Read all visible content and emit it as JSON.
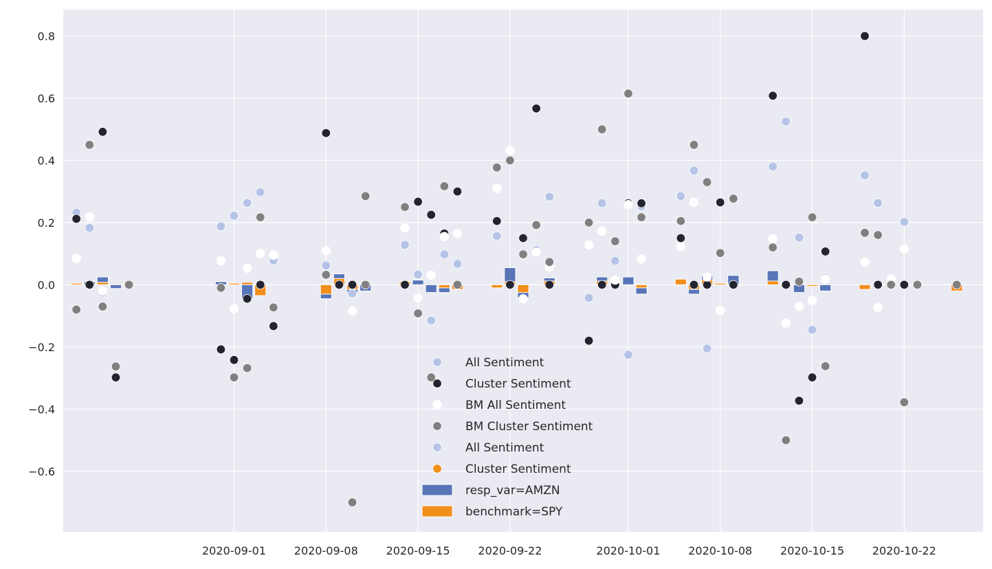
{
  "chart_data": {
    "type": "bar",
    "title": "",
    "xlabel": "",
    "ylabel": "",
    "ylim": [
      -0.795,
      0.885
    ],
    "xlim": [
      "2020-08-19",
      "2020-10-28"
    ],
    "grid": true,
    "background": "#eaeaf2",
    "yticks": [
      {
        "value": 0.8,
        "label": "0.8"
      },
      {
        "value": 0.6,
        "label": "0.6"
      },
      {
        "value": 0.4,
        "label": "0.4"
      },
      {
        "value": 0.2,
        "label": "0.2"
      },
      {
        "value": 0.0,
        "label": "0.0"
      },
      {
        "value": -0.2,
        "label": "−0.2"
      },
      {
        "value": -0.4,
        "label": "−0.4"
      },
      {
        "value": -0.6,
        "label": "−0.6"
      }
    ],
    "xticks": [
      "2020-09-01",
      "2020-09-08",
      "2020-09-15",
      "2020-09-22",
      "2020-10-01",
      "2020-10-08",
      "2020-10-15",
      "2020-10-22"
    ],
    "legend_position": "lower-center",
    "legend": [
      {
        "label": "All Sentiment",
        "kind": "dot",
        "color": "#b4c3e6"
      },
      {
        "label": "Cluster Sentiment",
        "kind": "dot",
        "color": "#23242f"
      },
      {
        "label": "BM All Sentiment",
        "kind": "dot",
        "color": "#ffffff"
      },
      {
        "label": "BM Cluster Sentiment",
        "kind": "dot",
        "color": "#808080"
      },
      {
        "label": "All Sentiment",
        "kind": "dot",
        "color": "#b4c3e6"
      },
      {
        "label": "Cluster Sentiment",
        "kind": "dot",
        "color": "#f28e1a"
      },
      {
        "label": "resp_var=AMZN",
        "kind": "bar",
        "color": "#5875b8"
      },
      {
        "label": "benchmark=SPY",
        "kind": "bar",
        "color": "#f28e1a"
      }
    ],
    "series": [
      {
        "name": "resp_var=AMZN",
        "kind": "bar",
        "color": "#5875b8",
        "points": [
          {
            "x": "2020-08-20",
            "y": 0.005
          },
          {
            "x": "2020-08-21",
            "y": 0.01
          },
          {
            "x": "2020-08-22",
            "y": 0.025
          },
          {
            "x": "2020-08-23",
            "y": -0.012
          },
          {
            "x": "2020-08-31",
            "y": 0.01
          },
          {
            "x": "2020-09-02",
            "y": -0.045
          },
          {
            "x": "2020-09-03",
            "y": -0.02
          },
          {
            "x": "2020-09-08",
            "y": -0.045
          },
          {
            "x": "2020-09-09",
            "y": 0.035
          },
          {
            "x": "2020-09-10",
            "y": -0.025
          },
          {
            "x": "2020-09-11",
            "y": -0.02
          },
          {
            "x": "2020-09-15",
            "y": 0.015
          },
          {
            "x": "2020-09-16",
            "y": -0.025
          },
          {
            "x": "2020-09-17",
            "y": -0.025
          },
          {
            "x": "2020-09-22",
            "y": 0.055
          },
          {
            "x": "2020-09-23",
            "y": -0.042
          },
          {
            "x": "2020-09-25",
            "y": 0.022
          },
          {
            "x": "2020-09-29",
            "y": 0.025
          },
          {
            "x": "2020-10-01",
            "y": 0.025
          },
          {
            "x": "2020-10-02",
            "y": -0.03
          },
          {
            "x": "2020-10-06",
            "y": -0.03
          },
          {
            "x": "2020-10-07",
            "y": 0.03
          },
          {
            "x": "2020-10-09",
            "y": 0.03
          },
          {
            "x": "2020-10-12",
            "y": 0.045
          },
          {
            "x": "2020-10-14",
            "y": -0.025
          },
          {
            "x": "2020-10-16",
            "y": -0.02
          }
        ]
      },
      {
        "name": "benchmark=SPY",
        "kind": "bar",
        "color": "#f28e1a",
        "points": [
          {
            "x": "2020-08-20",
            "y": 0.005
          },
          {
            "x": "2020-08-22",
            "y": 0.008
          },
          {
            "x": "2020-08-24",
            "y": 0.003
          },
          {
            "x": "2020-09-01",
            "y": 0.005
          },
          {
            "x": "2020-09-02",
            "y": 0.008
          },
          {
            "x": "2020-09-03",
            "y": -0.035
          },
          {
            "x": "2020-09-08",
            "y": -0.03
          },
          {
            "x": "2020-09-09",
            "y": 0.02
          },
          {
            "x": "2020-09-10",
            "y": -0.015
          },
          {
            "x": "2020-09-14",
            "y": 0.01
          },
          {
            "x": "2020-09-17",
            "y": -0.01
          },
          {
            "x": "2020-09-18",
            "y": -0.015
          },
          {
            "x": "2020-09-21",
            "y": -0.01
          },
          {
            "x": "2020-09-22",
            "y": 0.01
          },
          {
            "x": "2020-09-23",
            "y": -0.025
          },
          {
            "x": "2020-09-25",
            "y": 0.012
          },
          {
            "x": "2020-09-29",
            "y": 0.012
          },
          {
            "x": "2020-09-30",
            "y": 0.005
          },
          {
            "x": "2020-10-02",
            "y": -0.01
          },
          {
            "x": "2020-10-05",
            "y": 0.018
          },
          {
            "x": "2020-10-06",
            "y": -0.015
          },
          {
            "x": "2020-10-07",
            "y": 0.015
          },
          {
            "x": "2020-10-08",
            "y": 0.005
          },
          {
            "x": "2020-10-12",
            "y": 0.012
          },
          {
            "x": "2020-10-13",
            "y": -0.005
          },
          {
            "x": "2020-10-15",
            "y": -0.005
          },
          {
            "x": "2020-10-19",
            "y": -0.015
          },
          {
            "x": "2020-10-21",
            "y": 0.005
          },
          {
            "x": "2020-10-26",
            "y": -0.02
          }
        ]
      },
      {
        "name": "All Sentiment",
        "kind": "dot",
        "color": "#b4c3e6",
        "points": [
          {
            "x": "2020-08-20",
            "y": 0.232
          },
          {
            "x": "2020-08-21",
            "y": 0.183
          },
          {
            "x": "2020-08-22",
            "y": -0.025
          },
          {
            "x": "2020-08-31",
            "y": 0.188
          },
          {
            "x": "2020-09-01",
            "y": 0.222
          },
          {
            "x": "2020-09-02",
            "y": 0.263
          },
          {
            "x": "2020-09-03",
            "y": 0.298
          },
          {
            "x": "2020-09-04",
            "y": 0.078
          },
          {
            "x": "2020-09-08",
            "y": 0.062
          },
          {
            "x": "2020-09-10",
            "y": -0.028
          },
          {
            "x": "2020-09-14",
            "y": 0.128
          },
          {
            "x": "2020-09-15",
            "y": 0.033
          },
          {
            "x": "2020-09-16",
            "y": -0.115
          },
          {
            "x": "2020-09-17",
            "y": 0.098
          },
          {
            "x": "2020-09-18",
            "y": 0.067
          },
          {
            "x": "2020-09-21",
            "y": 0.157
          },
          {
            "x": "2020-09-24",
            "y": 0.112
          },
          {
            "x": "2020-09-25",
            "y": 0.283
          },
          {
            "x": "2020-09-28",
            "y": -0.042
          },
          {
            "x": "2020-09-29",
            "y": 0.262
          },
          {
            "x": "2020-09-30",
            "y": 0.077
          },
          {
            "x": "2020-10-01",
            "y": -0.225
          },
          {
            "x": "2020-10-02",
            "y": 0.252
          },
          {
            "x": "2020-10-05",
            "y": 0.285
          },
          {
            "x": "2020-10-06",
            "y": 0.367
          },
          {
            "x": "2020-10-07",
            "y": -0.205
          },
          {
            "x": "2020-10-12",
            "y": 0.38
          },
          {
            "x": "2020-10-13",
            "y": 0.525
          },
          {
            "x": "2020-10-14",
            "y": 0.152
          },
          {
            "x": "2020-10-15",
            "y": -0.145
          },
          {
            "x": "2020-10-16",
            "y": 0.022
          },
          {
            "x": "2020-10-19",
            "y": 0.352
          },
          {
            "x": "2020-10-20",
            "y": 0.263
          },
          {
            "x": "2020-10-22",
            "y": 0.202
          }
        ]
      },
      {
        "name": "Cluster Sentiment",
        "kind": "dot",
        "color": "#23242f",
        "points": [
          {
            "x": "2020-08-20",
            "y": 0.212
          },
          {
            "x": "2020-08-21",
            "y": 0.0
          },
          {
            "x": "2020-08-22",
            "y": 0.492
          },
          {
            "x": "2020-08-23",
            "y": -0.298
          },
          {
            "x": "2020-08-31",
            "y": -0.208
          },
          {
            "x": "2020-09-01",
            "y": -0.242
          },
          {
            "x": "2020-09-02",
            "y": -0.045
          },
          {
            "x": "2020-09-03",
            "y": 0.0
          },
          {
            "x": "2020-09-04",
            "y": -0.133
          },
          {
            "x": "2020-09-08",
            "y": 0.488
          },
          {
            "x": "2020-09-09",
            "y": 0.0
          },
          {
            "x": "2020-09-10",
            "y": 0.0
          },
          {
            "x": "2020-09-14",
            "y": 0.0
          },
          {
            "x": "2020-09-15",
            "y": 0.267
          },
          {
            "x": "2020-09-16",
            "y": 0.225
          },
          {
            "x": "2020-09-17",
            "y": 0.165
          },
          {
            "x": "2020-09-18",
            "y": 0.3
          },
          {
            "x": "2020-09-21",
            "y": 0.205
          },
          {
            "x": "2020-09-22",
            "y": 0.0
          },
          {
            "x": "2020-09-23",
            "y": 0.15
          },
          {
            "x": "2020-09-24",
            "y": 0.567
          },
          {
            "x": "2020-09-25",
            "y": 0.0
          },
          {
            "x": "2020-09-28",
            "y": -0.18
          },
          {
            "x": "2020-09-29",
            "y": 0.0
          },
          {
            "x": "2020-09-30",
            "y": 0.0
          },
          {
            "x": "2020-10-01",
            "y": 0.262
          },
          {
            "x": "2020-10-02",
            "y": 0.262
          },
          {
            "x": "2020-10-05",
            "y": 0.15
          },
          {
            "x": "2020-10-06",
            "y": 0.0
          },
          {
            "x": "2020-10-07",
            "y": 0.0
          },
          {
            "x": "2020-10-08",
            "y": 0.265
          },
          {
            "x": "2020-10-09",
            "y": 0.0
          },
          {
            "x": "2020-10-12",
            "y": 0.608
          },
          {
            "x": "2020-10-13",
            "y": 0.0
          },
          {
            "x": "2020-10-14",
            "y": -0.373
          },
          {
            "x": "2020-10-15",
            "y": -0.298
          },
          {
            "x": "2020-10-16",
            "y": 0.107
          },
          {
            "x": "2020-10-19",
            "y": 0.8
          },
          {
            "x": "2020-10-20",
            "y": 0.0
          },
          {
            "x": "2020-10-22",
            "y": 0.0
          }
        ]
      },
      {
        "name": "BM All Sentiment",
        "kind": "dot",
        "color": "#ffffff",
        "points": [
          {
            "x": "2020-08-20",
            "y": 0.085
          },
          {
            "x": "2020-08-21",
            "y": 0.218
          },
          {
            "x": "2020-08-22",
            "y": -0.02
          },
          {
            "x": "2020-08-31",
            "y": 0.077
          },
          {
            "x": "2020-09-01",
            "y": -0.078
          },
          {
            "x": "2020-09-02",
            "y": 0.053
          },
          {
            "x": "2020-09-03",
            "y": 0.1
          },
          {
            "x": "2020-09-04",
            "y": 0.095
          },
          {
            "x": "2020-09-08",
            "y": 0.11
          },
          {
            "x": "2020-09-10",
            "y": -0.085
          },
          {
            "x": "2020-09-14",
            "y": 0.183
          },
          {
            "x": "2020-09-15",
            "y": -0.043
          },
          {
            "x": "2020-09-16",
            "y": 0.03
          },
          {
            "x": "2020-09-17",
            "y": 0.155
          },
          {
            "x": "2020-09-18",
            "y": 0.165
          },
          {
            "x": "2020-09-21",
            "y": 0.31
          },
          {
            "x": "2020-09-22",
            "y": 0.432
          },
          {
            "x": "2020-09-23",
            "y": -0.045
          },
          {
            "x": "2020-09-24",
            "y": 0.105
          },
          {
            "x": "2020-09-25",
            "y": 0.057
          },
          {
            "x": "2020-09-28",
            "y": 0.128
          },
          {
            "x": "2020-09-29",
            "y": 0.172
          },
          {
            "x": "2020-09-30",
            "y": 0.015
          },
          {
            "x": "2020-10-01",
            "y": 0.258
          },
          {
            "x": "2020-10-02",
            "y": 0.083
          },
          {
            "x": "2020-10-05",
            "y": 0.122
          },
          {
            "x": "2020-10-06",
            "y": 0.265
          },
          {
            "x": "2020-10-07",
            "y": 0.025
          },
          {
            "x": "2020-10-08",
            "y": -0.083
          },
          {
            "x": "2020-10-12",
            "y": 0.148
          },
          {
            "x": "2020-10-13",
            "y": -0.123
          },
          {
            "x": "2020-10-14",
            "y": -0.07
          },
          {
            "x": "2020-10-15",
            "y": -0.05
          },
          {
            "x": "2020-10-16",
            "y": 0.018
          },
          {
            "x": "2020-10-19",
            "y": 0.073
          },
          {
            "x": "2020-10-20",
            "y": -0.073
          },
          {
            "x": "2020-10-21",
            "y": 0.018
          },
          {
            "x": "2020-10-22",
            "y": 0.115
          }
        ]
      },
      {
        "name": "BM Cluster Sentiment",
        "kind": "dot",
        "color": "#808080",
        "points": [
          {
            "x": "2020-08-20",
            "y": -0.08
          },
          {
            "x": "2020-08-21",
            "y": 0.45
          },
          {
            "x": "2020-08-22",
            "y": -0.07
          },
          {
            "x": "2020-08-23",
            "y": -0.263
          },
          {
            "x": "2020-08-24",
            "y": 0.0
          },
          {
            "x": "2020-08-31",
            "y": -0.01
          },
          {
            "x": "2020-09-01",
            "y": -0.298
          },
          {
            "x": "2020-09-02",
            "y": -0.268
          },
          {
            "x": "2020-09-03",
            "y": 0.217
          },
          {
            "x": "2020-09-04",
            "y": -0.073
          },
          {
            "x": "2020-09-08",
            "y": 0.032
          },
          {
            "x": "2020-09-10",
            "y": -0.7
          },
          {
            "x": "2020-09-11",
            "y": 0.285
          },
          {
            "x": "2020-09-11",
            "y": 0.0
          },
          {
            "x": "2020-09-14",
            "y": 0.25
          },
          {
            "x": "2020-09-15",
            "y": -0.092
          },
          {
            "x": "2020-09-16",
            "y": -0.298
          },
          {
            "x": "2020-09-17",
            "y": 0.317
          },
          {
            "x": "2020-09-18",
            "y": 0.0
          },
          {
            "x": "2020-09-21",
            "y": 0.377
          },
          {
            "x": "2020-09-22",
            "y": 0.4
          },
          {
            "x": "2020-09-23",
            "y": 0.098
          },
          {
            "x": "2020-09-24",
            "y": 0.192
          },
          {
            "x": "2020-09-25",
            "y": 0.073
          },
          {
            "x": "2020-09-28",
            "y": 0.2
          },
          {
            "x": "2020-09-29",
            "y": 0.5
          },
          {
            "x": "2020-09-30",
            "y": 0.14
          },
          {
            "x": "2020-10-01",
            "y": 0.615
          },
          {
            "x": "2020-10-02",
            "y": 0.217
          },
          {
            "x": "2020-10-05",
            "y": 0.205
          },
          {
            "x": "2020-10-06",
            "y": 0.45
          },
          {
            "x": "2020-10-07",
            "y": 0.33
          },
          {
            "x": "2020-10-08",
            "y": 0.102
          },
          {
            "x": "2020-10-09",
            "y": 0.277
          },
          {
            "x": "2020-10-12",
            "y": 0.12
          },
          {
            "x": "2020-10-13",
            "y": -0.5
          },
          {
            "x": "2020-10-14",
            "y": 0.01
          },
          {
            "x": "2020-10-15",
            "y": 0.217
          },
          {
            "x": "2020-10-16",
            "y": -0.262
          },
          {
            "x": "2020-10-19",
            "y": 0.167
          },
          {
            "x": "2020-10-20",
            "y": 0.16
          },
          {
            "x": "2020-10-21",
            "y": 0.0
          },
          {
            "x": "2020-10-22",
            "y": -0.378
          },
          {
            "x": "2020-10-23",
            "y": 0.0
          },
          {
            "x": "2020-10-26",
            "y": 0.0
          }
        ]
      }
    ]
  }
}
